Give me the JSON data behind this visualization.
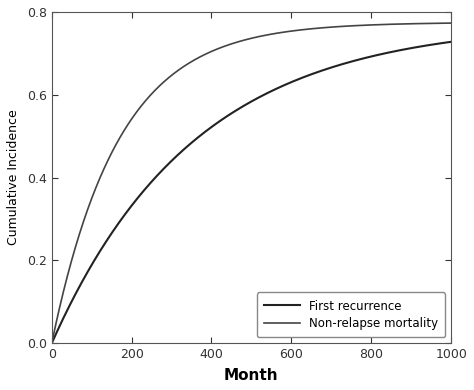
{
  "title": "",
  "xlabel": "Month",
  "ylabel": "Cumulative Incidence",
  "xlim": [
    0,
    1000
  ],
  "ylim": [
    0.0,
    0.8
  ],
  "xticks": [
    0,
    200,
    400,
    600,
    800,
    1000
  ],
  "yticks": [
    0.0,
    0.2,
    0.4,
    0.6,
    0.8
  ],
  "line1_label": "First recurrence",
  "line2_label": "Non-relapse mortality",
  "line1_color": "#222222",
  "line2_color": "#444444",
  "background_color": "#ffffff",
  "fig_color": "#ffffff",
  "legend_loc": "lower right",
  "curve1_params": {
    "a": 0.775,
    "b": 0.0028
  },
  "curve2_params": {
    "a": 0.775,
    "b": 0.006
  }
}
